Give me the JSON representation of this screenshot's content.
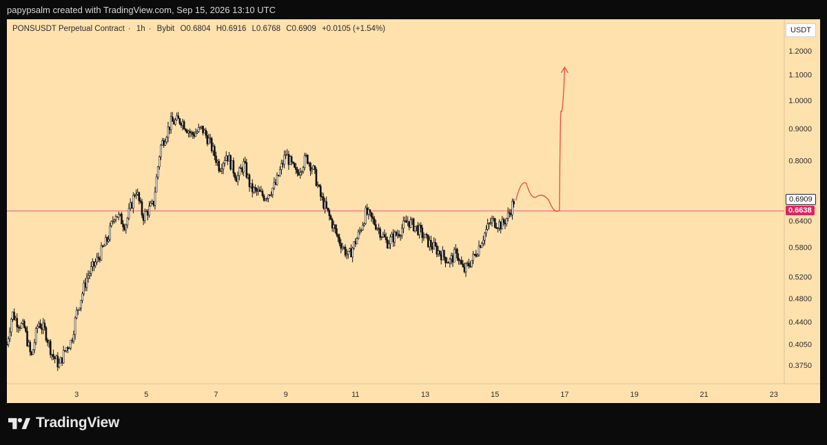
{
  "header": {
    "author_line": "papypsalm created with TradingView.com, Sep 15, 2026 13:10 UTC"
  },
  "legend": {
    "symbol": "PONSUSDT Perpetual Contract",
    "interval": "1h",
    "exchange": "Bybit",
    "open": "O0.6804",
    "high": "H0.6916",
    "low": "L0.6768",
    "close": "C0.6909",
    "change": "+0.0105 (+1.54%)"
  },
  "currency_button": "USDT",
  "brand": {
    "name": "TradingView"
  },
  "colors": {
    "background": "#ffe1ae",
    "candle": "#111111",
    "horizontal_line": "#e8557a",
    "price_label_bg": "#e0245e",
    "projection": "#e8473f"
  },
  "chart_data": {
    "type": "candlestick",
    "symbol": "PONSUSDT",
    "interval": "1h",
    "y_scale": "log",
    "ylim": [
      0.35,
      1.35
    ],
    "y_ticks": [
      "1.2000",
      "1.1000",
      "1.0000",
      "0.9000",
      "0.8000",
      "0.6400",
      "0.5800",
      "0.5200",
      "0.4800",
      "0.4400",
      "0.4050",
      "0.3750"
    ],
    "xlim_days": [
      1,
      23.3
    ],
    "x_ticks": [
      "3",
      "5",
      "7",
      "9",
      "11",
      "13",
      "15",
      "17",
      "19",
      "21",
      "23"
    ],
    "last_price": "0.6909",
    "horizontal_level": "0.6638",
    "price_path": [
      [
        1.0,
        0.405
      ],
      [
        1.15,
        0.455
      ],
      [
        1.3,
        0.44
      ],
      [
        1.5,
        0.43
      ],
      [
        1.7,
        0.385
      ],
      [
        1.9,
        0.44
      ],
      [
        2.1,
        0.425
      ],
      [
        2.3,
        0.39
      ],
      [
        2.5,
        0.375
      ],
      [
        2.7,
        0.4
      ],
      [
        2.85,
        0.41
      ],
      [
        3.0,
        0.455
      ],
      [
        3.3,
        0.52
      ],
      [
        3.6,
        0.555
      ],
      [
        3.9,
        0.6
      ],
      [
        4.1,
        0.66
      ],
      [
        4.4,
        0.63
      ],
      [
        4.7,
        0.72
      ],
      [
        4.9,
        0.65
      ],
      [
        5.2,
        0.68
      ],
      [
        5.4,
        0.84
      ],
      [
        5.7,
        0.92
      ],
      [
        6.0,
        0.93
      ],
      [
        6.3,
        0.88
      ],
      [
        6.6,
        0.9
      ],
      [
        6.8,
        0.86
      ],
      [
        7.1,
        0.78
      ],
      [
        7.3,
        0.82
      ],
      [
        7.6,
        0.75
      ],
      [
        7.8,
        0.79
      ],
      [
        8.0,
        0.72
      ],
      [
        8.4,
        0.7
      ],
      [
        8.7,
        0.73
      ],
      [
        9.0,
        0.82
      ],
      [
        9.3,
        0.76
      ],
      [
        9.6,
        0.81
      ],
      [
        9.8,
        0.77
      ],
      [
        10.0,
        0.7
      ],
      [
        10.3,
        0.64
      ],
      [
        10.5,
        0.6
      ],
      [
        10.8,
        0.56
      ],
      [
        11.1,
        0.61
      ],
      [
        11.3,
        0.66
      ],
      [
        11.6,
        0.63
      ],
      [
        11.9,
        0.59
      ],
      [
        12.2,
        0.61
      ],
      [
        12.5,
        0.64
      ],
      [
        12.8,
        0.62
      ],
      [
        13.1,
        0.59
      ],
      [
        13.4,
        0.57
      ],
      [
        13.7,
        0.55
      ],
      [
        13.9,
        0.57
      ],
      [
        14.1,
        0.53
      ],
      [
        14.4,
        0.56
      ],
      [
        14.7,
        0.61
      ],
      [
        14.9,
        0.64
      ],
      [
        15.2,
        0.63
      ],
      [
        15.4,
        0.655
      ],
      [
        15.55,
        0.691
      ]
    ],
    "projection_path": [
      [
        15.6,
        0.69
      ],
      [
        15.9,
        0.735
      ],
      [
        16.2,
        0.7
      ],
      [
        16.55,
        0.69
      ],
      [
        16.85,
        0.665
      ],
      [
        16.9,
        0.96
      ],
      [
        17.0,
        1.13
      ]
    ],
    "annotations": [
      "projected move up (hand-drawn red arrow)"
    ]
  }
}
